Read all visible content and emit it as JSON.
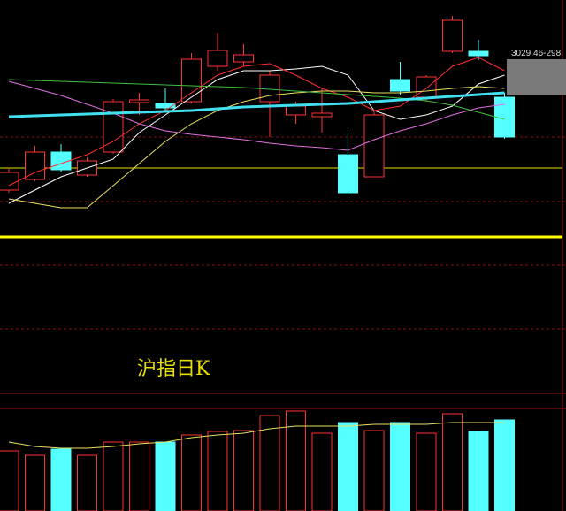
{
  "chart_data": {
    "type": "candlestick",
    "title": "沪指日K",
    "price_label": "3029.46-298",
    "ylim": [
      2649,
      3089
    ],
    "categories": [
      null,
      null,
      null,
      null,
      null,
      null,
      null,
      null,
      null,
      null,
      null,
      null,
      null,
      null,
      null,
      null,
      null,
      null,
      null,
      null
    ],
    "up_color": "#ff3232",
    "down_color": "#54ffff",
    "open": [
      2874,
      2886,
      2917,
      2891,
      2917,
      2973,
      2972,
      2974,
      3014,
      3019,
      2974,
      2959,
      2957,
      2914,
      2889,
      2999,
      2979,
      3031,
      3031,
      2979
    ],
    "close": [
      2894,
      2917,
      2897,
      2907,
      2974,
      2976,
      2967,
      3022,
      3032,
      3027,
      3004,
      2969,
      2961,
      2871,
      2959,
      2986,
      3002,
      3066,
      3026,
      2934
    ],
    "high": [
      2899,
      2924,
      2926,
      2911,
      2977,
      2984,
      2989,
      3029,
      3052,
      3039,
      3009,
      2974,
      2989,
      2939,
      2964,
      3019,
      3004,
      3071,
      3044,
      2984
    ],
    "low": [
      2871,
      2884,
      2894,
      2889,
      2915,
      2959,
      2964,
      2972,
      3009,
      3014,
      2934,
      2949,
      2939,
      2869,
      2889,
      2982,
      2974,
      3029,
      3021,
      2932
    ],
    "series": [
      {
        "color": "#ffffff",
        "values": [
          2859,
          2874,
          2889,
          2899,
          2909,
          2939,
          2959,
          2979,
          2999,
          3009,
          3009,
          3011,
          3014,
          3004,
          2964,
          2954,
          2959,
          2969,
          2994,
          3004
        ]
      },
      {
        "color": "#ff3030",
        "values": [
          2879,
          2894,
          2904,
          2914,
          2929,
          2949,
          2964,
          2984,
          3004,
          3014,
          3017,
          3004,
          2989,
          2979,
          2964,
          2969,
          2989,
          3014,
          3024,
          3009
        ]
      },
      {
        "color": "#e8e060",
        "values": [
          2864,
          2859,
          2854,
          2854,
          2879,
          2904,
          2929,
          2949,
          2964,
          2974,
          2981,
          2984,
          2986,
          2986,
          2984,
          2984,
          2986,
          2989,
          2991,
          2989
        ]
      },
      {
        "color": "#e070e0",
        "values": [
          2997,
          2989,
          2981,
          2971,
          2961,
          2949,
          2941,
          2937,
          2934,
          2931,
          2927,
          2924,
          2922,
          2919,
          2931,
          2941,
          2949,
          2959,
          2967,
          2971
        ]
      },
      {
        "color": "#40c040",
        "values": [
          2999,
          2998,
          2997,
          2996,
          2995,
          2994,
          2993,
          2992,
          2991,
          2990,
          2988,
          2986,
          2984,
          2982,
          2980,
          2978,
          2975,
          2970,
          2962,
          2954
        ]
      },
      {
        "color": "#40e0f0",
        "width": 3,
        "values": [
          2957,
          2958,
          2959,
          2960,
          2961,
          2962,
          2963,
          2964,
          2966,
          2968,
          2969,
          2970,
          2971,
          2972,
          2974,
          2976,
          2978,
          2980,
          2982,
          2984
        ]
      }
    ],
    "hlines": [
      {
        "value": 2821,
        "color": "#ffff00",
        "width": 3
      },
      {
        "value": 2899,
        "color": "#e8e000",
        "width": 1
      }
    ],
    "volume": [
      68,
      63,
      70,
      63,
      78,
      78,
      78,
      86,
      90,
      91,
      108,
      113,
      88,
      100,
      91,
      100,
      88,
      110,
      90,
      103
    ],
    "vlim": [
      0,
      123
    ],
    "volume_ma": {
      "color": "#e8e060",
      "values": [
        78,
        73,
        71,
        71,
        73,
        76,
        78,
        83,
        86,
        88,
        93,
        96,
        96,
        96,
        98,
        98,
        98,
        100,
        100,
        100
      ]
    }
  }
}
